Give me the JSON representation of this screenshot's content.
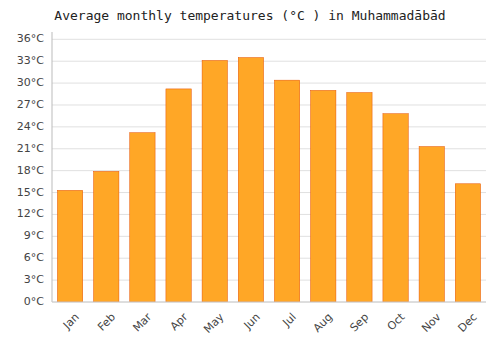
{
  "chart_data": {
    "type": "bar",
    "title": "Average monthly temperatures (°C ) in Muhammadābād",
    "categories": [
      "Jan",
      "Feb",
      "Mar",
      "Apr",
      "May",
      "Jun",
      "Jul",
      "Aug",
      "Sep",
      "Oct",
      "Nov",
      "Dec"
    ],
    "values": [
      15.3,
      17.9,
      23.2,
      29.2,
      33.1,
      33.5,
      30.4,
      29.0,
      28.7,
      25.8,
      21.3,
      16.2
    ],
    "color": "#FFA726",
    "ylim": [
      0,
      37
    ],
    "yticks": [
      {
        "value": 0,
        "label": "0°C"
      },
      {
        "value": 3,
        "label": "3°C"
      },
      {
        "value": 6,
        "label": "6°C"
      },
      {
        "value": 9,
        "label": "9°C"
      },
      {
        "value": 12,
        "label": "12°C"
      },
      {
        "value": 15,
        "label": "15°C"
      },
      {
        "value": 18,
        "label": "18°C"
      },
      {
        "value": 21,
        "label": "21°C"
      },
      {
        "value": 24,
        "label": "24°C"
      },
      {
        "value": 27,
        "label": "27°C"
      },
      {
        "value": 30,
        "label": "30°C"
      },
      {
        "value": 33,
        "label": "33°C"
      },
      {
        "value": 36,
        "label": "36°C"
      }
    ],
    "grid": true
  }
}
